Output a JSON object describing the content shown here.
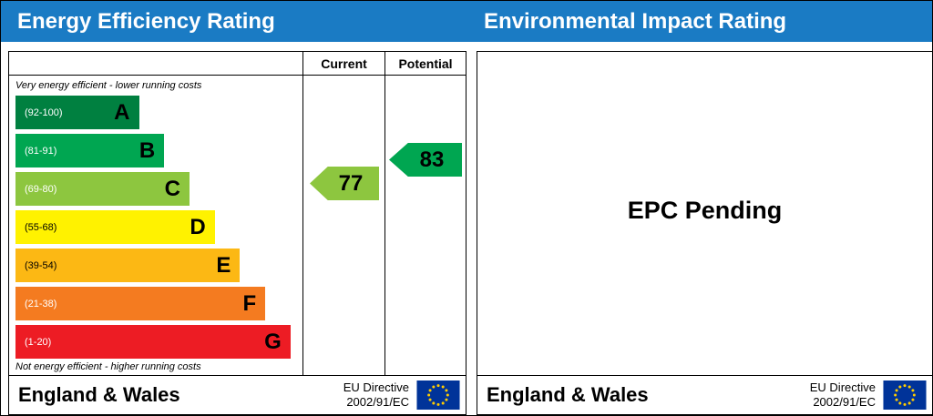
{
  "colors": {
    "header_blue": "#1a7bc4",
    "eu_flag_blue": "#003399",
    "eu_flag_star": "#ffcc00"
  },
  "header": {
    "left_title": "Energy Efficiency Rating",
    "right_title": "Environmental Impact Rating"
  },
  "columns": {
    "current": "Current",
    "potential": "Potential"
  },
  "notes": {
    "top": "Very energy efficient - lower running costs",
    "bottom": "Not energy efficient - higher running costs"
  },
  "bands": [
    {
      "letter": "A",
      "range": "(92-100)",
      "color": "#008040",
      "text_color": "#ffffff",
      "width_pct": 44
    },
    {
      "letter": "B",
      "range": "(81-91)",
      "color": "#00a651",
      "text_color": "#ffffff",
      "width_pct": 53
    },
    {
      "letter": "C",
      "range": "(69-80)",
      "color": "#8dc63f",
      "text_color": "#ffffff",
      "width_pct": 62
    },
    {
      "letter": "D",
      "range": "(55-68)",
      "color": "#fff200",
      "text_color": "#000000",
      "width_pct": 71
    },
    {
      "letter": "E",
      "range": "(39-54)",
      "color": "#fcb814",
      "text_color": "#000000",
      "width_pct": 80
    },
    {
      "letter": "F",
      "range": "(21-38)",
      "color": "#f47b20",
      "text_color": "#ffffff",
      "width_pct": 89
    },
    {
      "letter": "G",
      "range": "(1-20)",
      "color": "#ed1c24",
      "text_color": "#ffffff",
      "width_pct": 98
    }
  ],
  "ratings": {
    "current": {
      "value": "77",
      "color": "#8dc63f"
    },
    "potential": {
      "value": "83",
      "color": "#00a651"
    }
  },
  "right_panel": {
    "message": "EPC Pending"
  },
  "footer": {
    "region": "England & Wales",
    "directive": [
      "EU Directive",
      "2002/91/EC"
    ]
  },
  "chart_data": {
    "type": "bar",
    "title": "Energy Efficiency Rating",
    "categories": [
      "A",
      "B",
      "C",
      "D",
      "E",
      "F",
      "G"
    ],
    "ranges": [
      "92-100",
      "81-91",
      "69-80",
      "55-68",
      "39-54",
      "21-38",
      "1-20"
    ],
    "current": 77,
    "current_band": "C",
    "potential": 83,
    "potential_band": "B",
    "legend_position": "none",
    "grid": false,
    "secondary_panel_note": "EPC Pending (Environmental Impact Rating not shown)"
  }
}
